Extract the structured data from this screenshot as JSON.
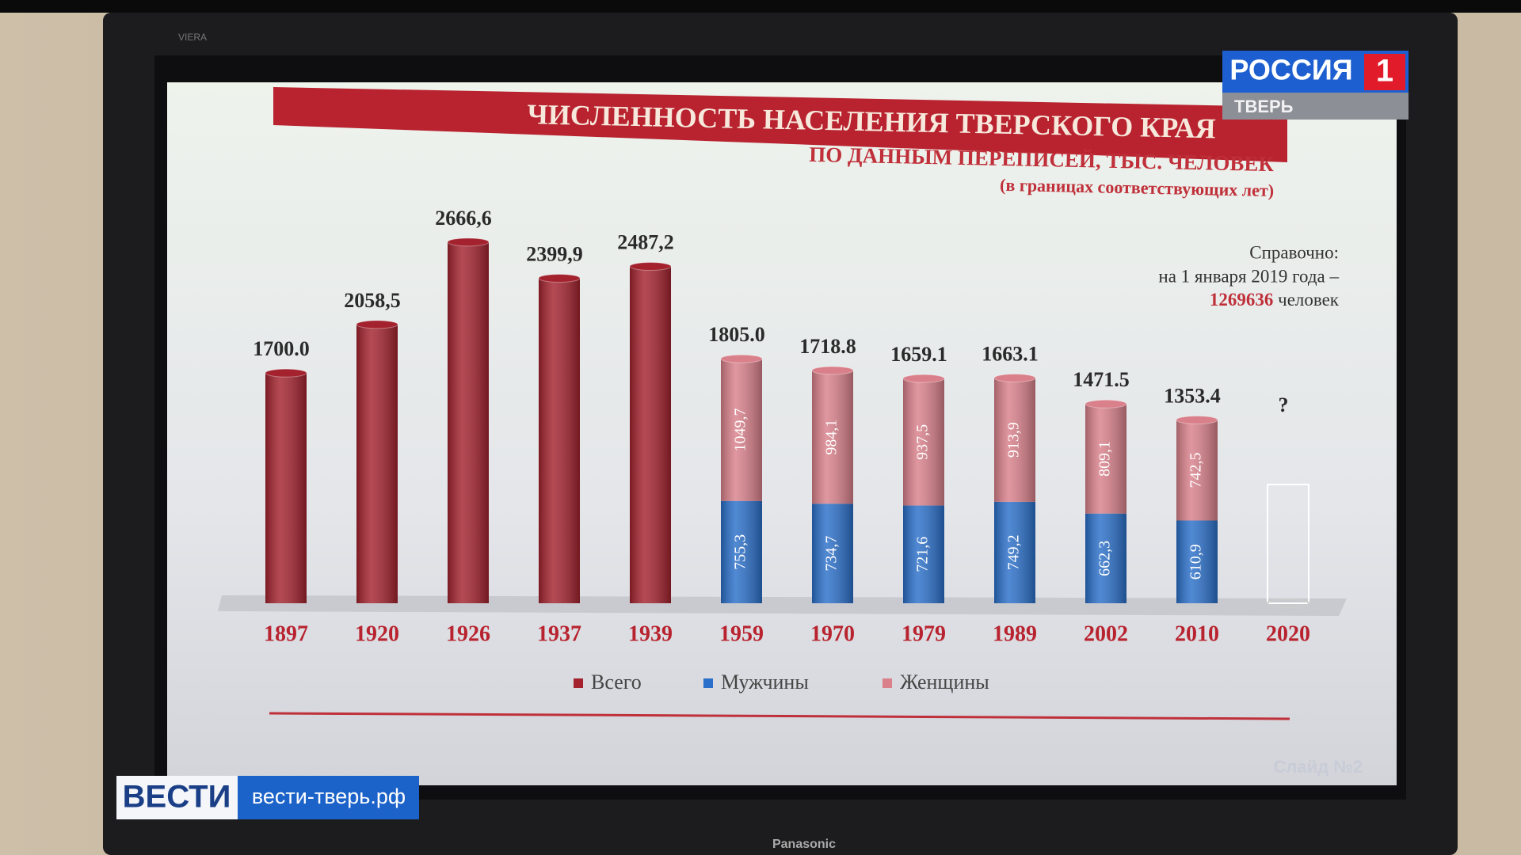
{
  "chart_data": {
    "type": "bar",
    "title": "ЧИСЛЕННОСТЬ НАСЕЛЕНИЯ ТВЕРСКОГО КРАЯ",
    "subtitle": "ПО ДАННЫМ ПЕРЕПИСЕЙ, ТЫС. ЧЕЛОВЕК",
    "subtitle2": "(в границах соответствующих лет)",
    "note": [
      "Справочно:",
      "на 1 января 2019 года –",
      "1269636",
      "человек"
    ],
    "categories": [
      "1897",
      "1920",
      "1926",
      "1937",
      "1939",
      "1959",
      "1970",
      "1979",
      "1989",
      "2002",
      "2010",
      "2020"
    ],
    "ylim": [
      0,
      2800
    ],
    "series": [
      {
        "name": "Всего",
        "color": "#a3222e",
        "values": [
          1700.0,
          2058.5,
          2666.6,
          2399.9,
          2487.2,
          1805.0,
          1718.8,
          1659.1,
          1663.1,
          1471.5,
          1353.4,
          null
        ],
        "value_labels": [
          "1700.0",
          "2058,5",
          "2666,6",
          "2399,9",
          "2487,2",
          "1805.0",
          "1718.8",
          "1659.1",
          "1663.1",
          "1471.5",
          "1353.4",
          "?"
        ]
      },
      {
        "name": "Мужчины",
        "color": "#2a6fc9",
        "values": [
          null,
          null,
          null,
          null,
          null,
          755.3,
          734.7,
          721.6,
          749.2,
          662.3,
          610.9,
          null
        ],
        "value_labels": [
          null,
          null,
          null,
          null,
          null,
          "755,3",
          "734,7",
          "721,6",
          "749,2",
          "662,3",
          "610,9",
          null
        ]
      },
      {
        "name": "Женщины",
        "color": "#d9808a",
        "values": [
          null,
          null,
          null,
          null,
          null,
          1049.7,
          984.1,
          937.5,
          913.9,
          809.1,
          742.5,
          null
        ],
        "value_labels": [
          null,
          null,
          null,
          null,
          null,
          "1049,7",
          "984,1",
          "937,5",
          "913,9",
          "809,1",
          "742,5",
          null
        ]
      }
    ],
    "slide": "Слайд №2"
  },
  "overlay": {
    "channel": "РОССИЯ",
    "channel_number": "1",
    "region": "ТВЕРЬ",
    "show": "ВЕСТИ",
    "site": "вести-тверь.рф",
    "tv_brand": "Panasonic",
    "tv_model": "VIERA"
  }
}
